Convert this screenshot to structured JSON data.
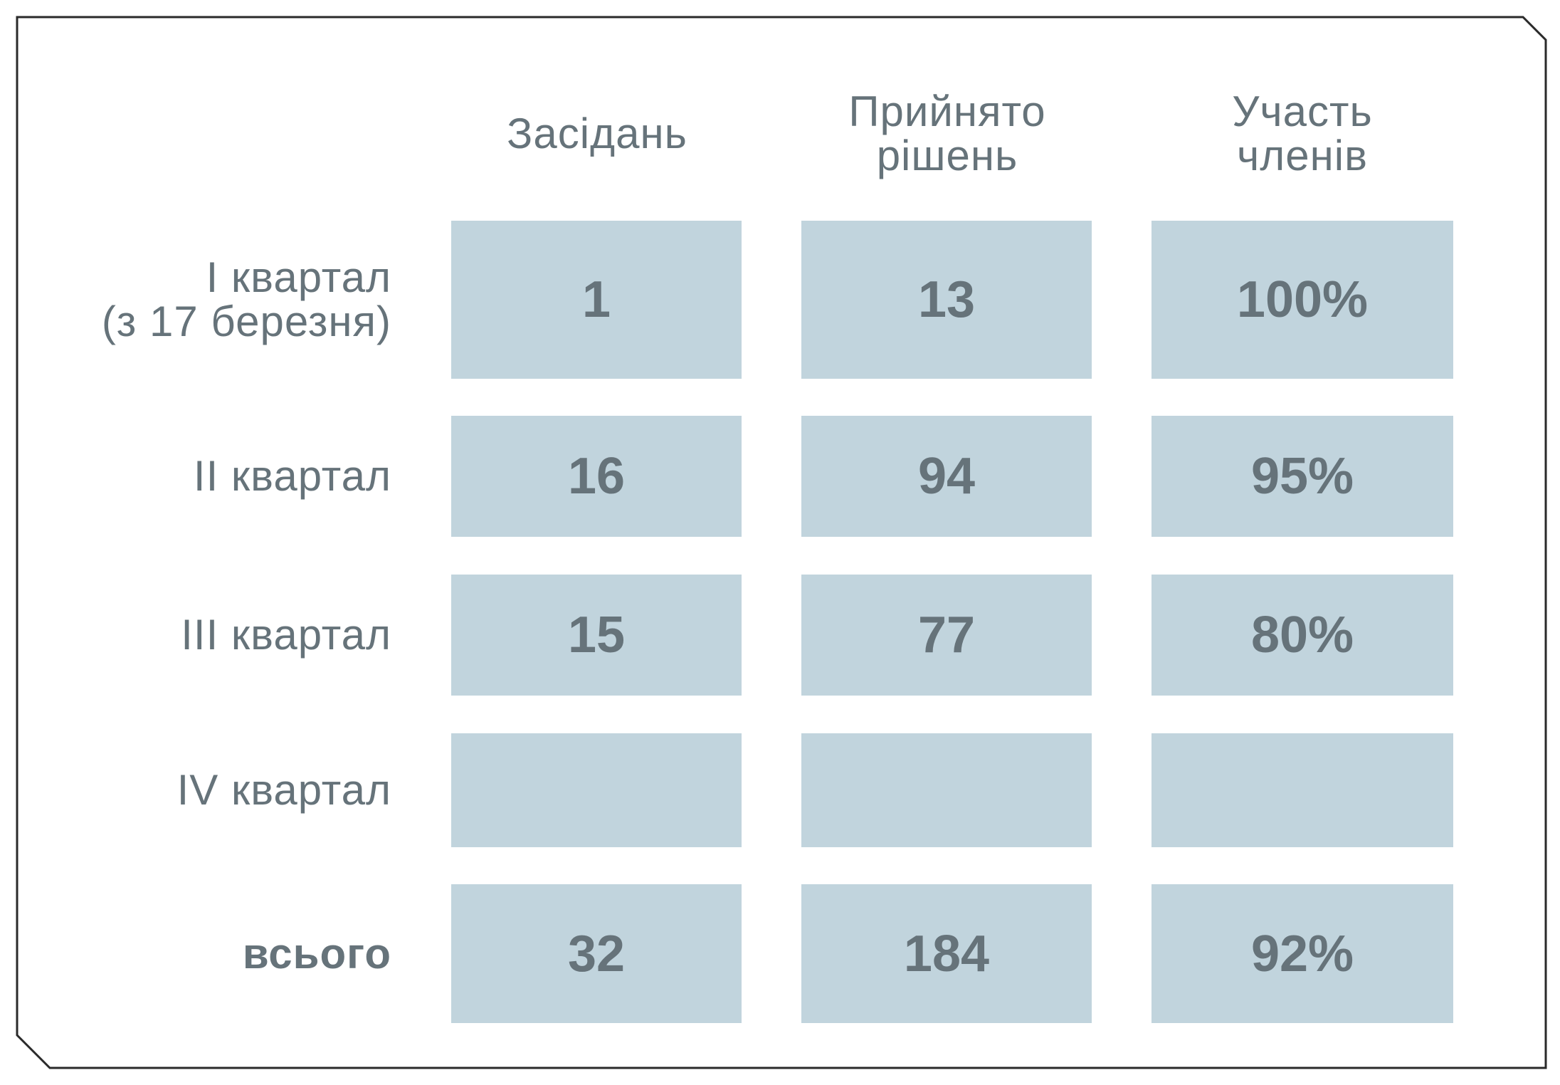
{
  "colors": {
    "cell_fill": "#c1d4dd",
    "text": "#66737a",
    "border": "#2a2a2a"
  },
  "columns": [
    "Засідань",
    "Прийнято\nрішень",
    "Участь\nчленів"
  ],
  "rows": [
    {
      "label": "I квартал\n(з 17 березня)",
      "values": [
        "1",
        "13",
        "100%"
      ]
    },
    {
      "label": "II квартал",
      "values": [
        "16",
        "94",
        "95%"
      ]
    },
    {
      "label": "III квартал",
      "values": [
        "15",
        "77",
        "80%"
      ]
    },
    {
      "label": "IV квартал",
      "values": [
        "",
        "",
        ""
      ]
    },
    {
      "label": "всього",
      "values": [
        "32",
        "184",
        "92%"
      ]
    }
  ]
}
